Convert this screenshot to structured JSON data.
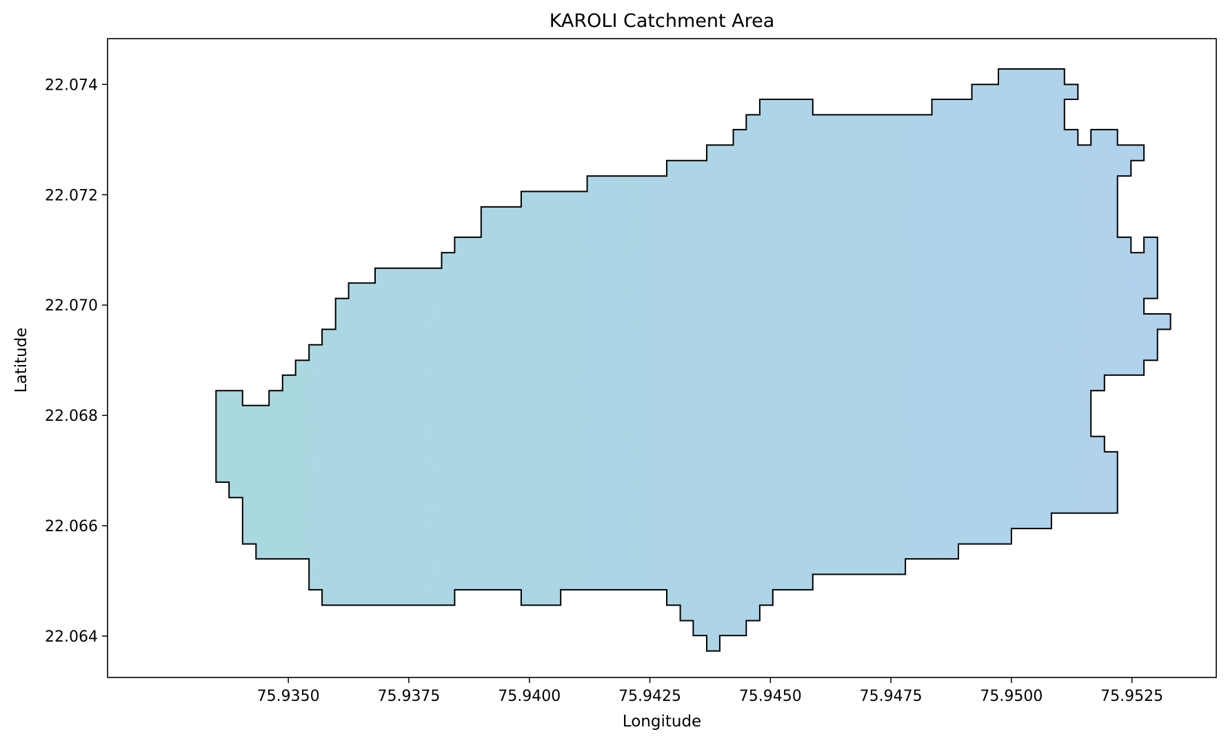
{
  "chart_data": {
    "type": "map-polygon",
    "title": "KAROLI Catchment Area",
    "xlabel": "Longitude",
    "ylabel": "Latitude",
    "xlim": [
      75.93125,
      75.95425
    ],
    "ylim": [
      22.06325,
      22.07483
    ],
    "x_ticks": [
      "75.9350",
      "75.9375",
      "75.9400",
      "75.9425",
      "75.9450",
      "75.9475",
      "75.9500",
      "75.9525"
    ],
    "y_ticks": [
      "22.064",
      "22.066",
      "22.068",
      "22.070",
      "22.072",
      "22.074"
    ],
    "grid": false,
    "legend": "none",
    "fill_color_west": "#aad8e0",
    "fill_color_east": "#b0d2ec",
    "edge_color": "#000000",
    "polygon_vertices": [
      [
        75.93377,
        22.06845
      ],
      [
        75.93405,
        22.06845
      ],
      [
        75.93405,
        22.06818
      ],
      [
        75.9346,
        22.06818
      ],
      [
        75.9346,
        22.06845
      ],
      [
        75.93488,
        22.06845
      ],
      [
        75.93488,
        22.06873
      ],
      [
        75.93515,
        22.06873
      ],
      [
        75.93515,
        22.069
      ],
      [
        75.93543,
        22.069
      ],
      [
        75.93543,
        22.06928
      ],
      [
        75.9357,
        22.06928
      ],
      [
        75.9357,
        22.06956
      ],
      [
        75.93598,
        22.06956
      ],
      [
        75.93598,
        22.07012
      ],
      [
        75.93625,
        22.07012
      ],
      [
        75.93625,
        22.0704
      ],
      [
        75.9368,
        22.0704
      ],
      [
        75.9368,
        22.07067
      ],
      [
        75.93818,
        22.07067
      ],
      [
        75.93818,
        22.07095
      ],
      [
        75.93845,
        22.07095
      ],
      [
        75.93845,
        22.07123
      ],
      [
        75.939,
        22.07123
      ],
      [
        75.939,
        22.07178
      ],
      [
        75.93983,
        22.07178
      ],
      [
        75.93983,
        22.07206
      ],
      [
        75.9412,
        22.07206
      ],
      [
        75.9412,
        22.07234
      ],
      [
        75.94285,
        22.07234
      ],
      [
        75.94285,
        22.07262
      ],
      [
        75.94368,
        22.07262
      ],
      [
        75.94368,
        22.0729
      ],
      [
        75.94423,
        22.0729
      ],
      [
        75.94423,
        22.07318
      ],
      [
        75.9445,
        22.07318
      ],
      [
        75.9445,
        22.07345
      ],
      [
        75.94478,
        22.07345
      ],
      [
        75.94478,
        22.07373
      ],
      [
        75.94588,
        22.07373
      ],
      [
        75.94588,
        22.07345
      ],
      [
        75.94835,
        22.07345
      ],
      [
        75.94835,
        22.07373
      ],
      [
        75.94918,
        22.07373
      ],
      [
        75.94918,
        22.074
      ],
      [
        75.94973,
        22.074
      ],
      [
        75.94973,
        22.07428
      ],
      [
        75.9511,
        22.07428
      ],
      [
        75.9511,
        22.074
      ],
      [
        75.95138,
        22.074
      ],
      [
        75.95138,
        22.07373
      ],
      [
        75.9511,
        22.07373
      ],
      [
        75.9511,
        22.07318
      ],
      [
        75.95138,
        22.07318
      ],
      [
        75.95138,
        22.0729
      ],
      [
        75.95165,
        22.0729
      ],
      [
        75.95165,
        22.07318
      ],
      [
        75.9522,
        22.07318
      ],
      [
        75.9522,
        22.0729
      ],
      [
        75.95275,
        22.0729
      ],
      [
        75.95275,
        22.07262
      ],
      [
        75.95248,
        22.07262
      ],
      [
        75.95248,
        22.07234
      ],
      [
        75.9522,
        22.07234
      ],
      [
        75.9522,
        22.07123
      ],
      [
        75.95248,
        22.07123
      ],
      [
        75.95248,
        22.07095
      ],
      [
        75.95275,
        22.07095
      ],
      [
        75.95275,
        22.07123
      ],
      [
        75.95303,
        22.07123
      ],
      [
        75.95303,
        22.07012
      ],
      [
        75.95275,
        22.07012
      ],
      [
        75.95275,
        22.06984
      ],
      [
        75.9533,
        22.06984
      ],
      [
        75.9533,
        22.06956
      ],
      [
        75.95303,
        22.06956
      ],
      [
        75.95303,
        22.069
      ],
      [
        75.95275,
        22.069
      ],
      [
        75.95275,
        22.06873
      ],
      [
        75.95193,
        22.06873
      ],
      [
        75.95193,
        22.06845
      ],
      [
        75.95165,
        22.06845
      ],
      [
        75.95165,
        22.06762
      ],
      [
        75.95193,
        22.06762
      ],
      [
        75.95193,
        22.06734
      ],
      [
        75.9522,
        22.06734
      ],
      [
        75.9522,
        22.06623
      ],
      [
        75.95083,
        22.06623
      ],
      [
        75.95083,
        22.06595
      ],
      [
        75.95,
        22.06595
      ],
      [
        75.95,
        22.06567
      ],
      [
        75.9489,
        22.06567
      ],
      [
        75.9489,
        22.0654
      ],
      [
        75.9478,
        22.0654
      ],
      [
        75.9478,
        22.06512
      ],
      [
        75.94588,
        22.06512
      ],
      [
        75.94588,
        22.06484
      ],
      [
        75.94505,
        22.06484
      ],
      [
        75.94505,
        22.06456
      ],
      [
        75.94478,
        22.06456
      ],
      [
        75.94478,
        22.06428
      ],
      [
        75.9445,
        22.06428
      ],
      [
        75.9445,
        22.06401
      ],
      [
        75.94395,
        22.06401
      ],
      [
        75.94395,
        22.06373
      ],
      [
        75.94368,
        22.06373
      ],
      [
        75.94368,
        22.06401
      ],
      [
        75.9434,
        22.06401
      ],
      [
        75.9434,
        22.06428
      ],
      [
        75.94313,
        22.06428
      ],
      [
        75.94313,
        22.06456
      ],
      [
        75.94285,
        22.06456
      ],
      [
        75.94285,
        22.06484
      ],
      [
        75.94065,
        22.06484
      ],
      [
        75.94065,
        22.06456
      ],
      [
        75.93983,
        22.06456
      ],
      [
        75.93983,
        22.06484
      ],
      [
        75.93845,
        22.06484
      ],
      [
        75.93845,
        22.06456
      ],
      [
        75.9357,
        22.06456
      ],
      [
        75.9357,
        22.06484
      ],
      [
        75.93543,
        22.06484
      ],
      [
        75.93543,
        22.0654
      ],
      [
        75.93433,
        22.0654
      ],
      [
        75.93433,
        22.06567
      ],
      [
        75.93405,
        22.06567
      ],
      [
        75.93405,
        22.06651
      ],
      [
        75.93377,
        22.06651
      ],
      [
        75.93377,
        22.06679
      ],
      [
        75.9335,
        22.06679
      ],
      [
        75.9335,
        22.06845
      ]
    ]
  }
}
